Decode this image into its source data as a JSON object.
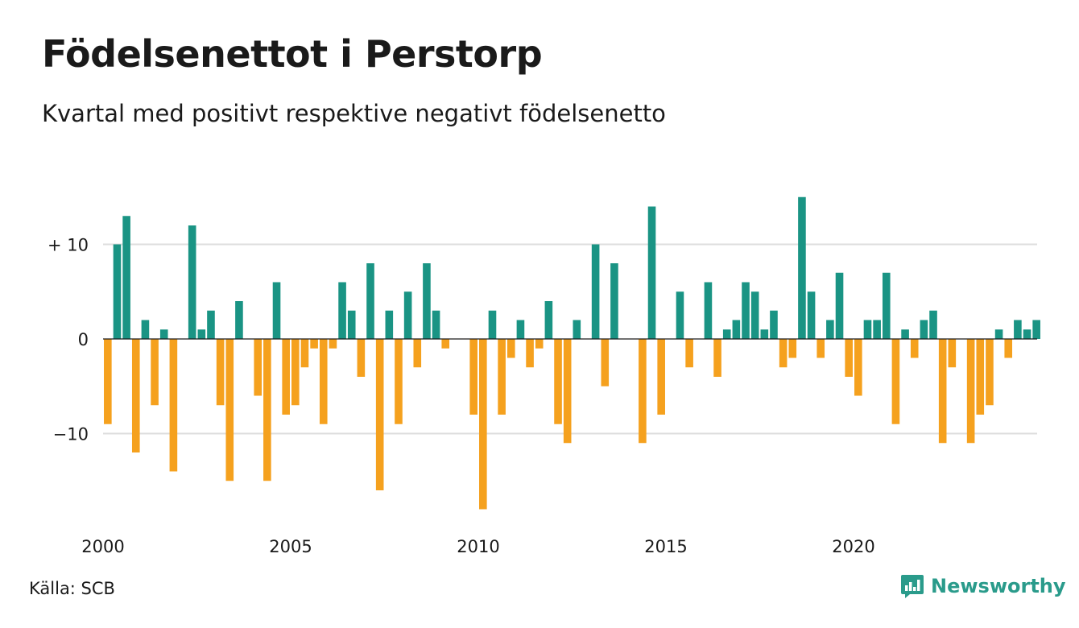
{
  "title": "Födelsenettot i Perstorp",
  "subtitle": "Kvartal med positivt respektive negativt födelsenetto",
  "source": "Källa: SCB",
  "brand": "Newsworthy",
  "colors": {
    "positive": "#1a9484",
    "negative": "#f5a11e",
    "grid": "#dedede",
    "brand": "#2a9b8b"
  },
  "chart_data": {
    "type": "bar",
    "title": "Födelsenettot i Perstorp",
    "subtitle": "Kvartal med positivt respektive negativt födelsenetto",
    "xlabel": "",
    "ylabel": "",
    "ylim": [
      -18,
      15
    ],
    "grid": true,
    "y_ticks": [
      {
        "value": 10,
        "label": "+ 10"
      },
      {
        "value": 0,
        "label": "0"
      },
      {
        "value": -10,
        "label": "−10"
      }
    ],
    "x_ticks": [
      {
        "value": 2000,
        "label": "2000"
      },
      {
        "value": 2005,
        "label": "2005"
      },
      {
        "value": 2010,
        "label": "2010"
      },
      {
        "value": 2015,
        "label": "2015"
      },
      {
        "value": 2020,
        "label": "2020"
      }
    ],
    "start_year": 2000,
    "quarters_per_year": 4,
    "values": [
      -9,
      10,
      13,
      -12,
      2,
      -7,
      1,
      -14,
      0,
      12,
      1,
      3,
      -7,
      -15,
      4,
      0,
      -6,
      -15,
      6,
      -8,
      -7,
      -3,
      -1,
      -9,
      -1,
      6,
      3,
      -4,
      8,
      -16,
      3,
      -9,
      5,
      -3,
      8,
      3,
      -1,
      0,
      0,
      -8,
      -18,
      3,
      -8,
      -2,
      2,
      -3,
      -1,
      4,
      -9,
      -11,
      2,
      0,
      10,
      -5,
      8,
      0,
      0,
      -11,
      14,
      -8,
      0,
      5,
      -3,
      0,
      6,
      -4,
      1,
      2,
      6,
      5,
      1,
      3,
      -3,
      -2,
      15,
      5,
      -2,
      2,
      7,
      -4,
      -6,
      2,
      2,
      7,
      -9,
      1,
      -2,
      2,
      3,
      -11,
      -3,
      0,
      -11,
      -8,
      -7,
      1,
      -2,
      2,
      1,
      2
    ]
  }
}
